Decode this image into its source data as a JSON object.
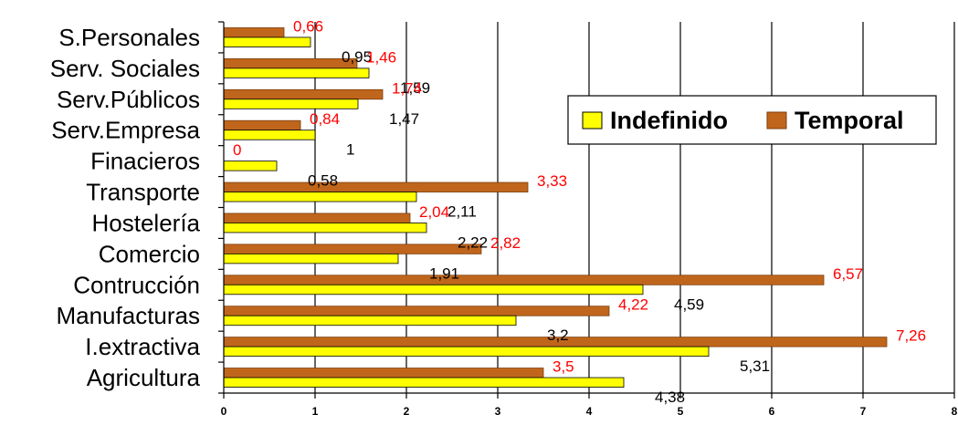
{
  "chart_data": {
    "type": "bar",
    "orientation": "horizontal",
    "categories": [
      "S.Personales",
      "Serv. Sociales",
      "Serv.Públicos",
      "Serv.Empresa",
      "Finacieros",
      "Transporte",
      "Hostelería",
      "Comercio",
      "Contrucción",
      "Manufacturas",
      "I.extractiva",
      "Agricultura"
    ],
    "series": [
      {
        "name": "Indefinido",
        "color": "#ffff00",
        "label_color": "#000000",
        "values": [
          0.95,
          1.59,
          1.47,
          1,
          0.58,
          2.11,
          2.22,
          1.91,
          4.59,
          3.2,
          5.31,
          4.38
        ],
        "labels": [
          "0,95",
          "1,59",
          "1,47",
          "1",
          "0,58",
          "2,11",
          "2,22",
          "1,91",
          "4,59",
          "3,2",
          "5,31",
          "4,38"
        ]
      },
      {
        "name": "Temporal",
        "color": "#c0661c",
        "label_color": "#ff0000",
        "values": [
          0.66,
          1.46,
          1.74,
          0.84,
          0,
          3.33,
          2.04,
          2.82,
          6.57,
          4.22,
          7.26,
          3.5
        ],
        "labels": [
          "0,66",
          "1,46",
          "1,74",
          "0,84",
          "0",
          "3,33",
          "2,04",
          "2,82",
          "6,57",
          "4,22",
          "7,26",
          "3,5"
        ]
      }
    ],
    "xlim": [
      0,
      8
    ],
    "xticks": [
      "0",
      "1",
      "2",
      "3",
      "4",
      "5",
      "6",
      "7",
      "8"
    ],
    "grid": "vertical",
    "legend_position": "right",
    "title": "",
    "xlabel": "",
    "ylabel": ""
  }
}
